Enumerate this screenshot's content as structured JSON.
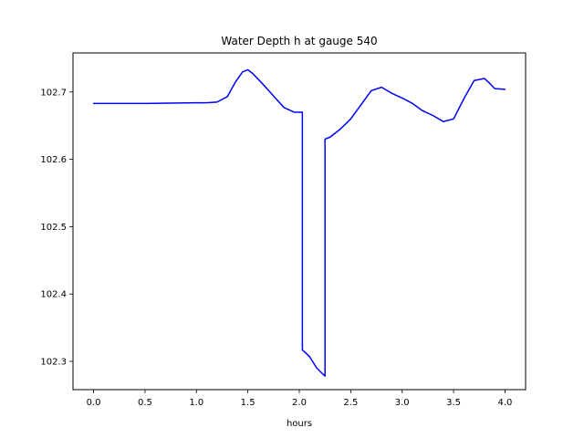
{
  "chart_data": {
    "type": "line",
    "title": "Water Depth h at gauge 540",
    "xlabel": "hours",
    "ylabel": "",
    "xlim": [
      -0.2,
      4.2
    ],
    "ylim": [
      102.258,
      102.758
    ],
    "xticks": [
      0.0,
      0.5,
      1.0,
      1.5,
      2.0,
      2.5,
      3.0,
      3.5,
      4.0
    ],
    "xtick_labels": [
      "0.0",
      "0.5",
      "1.0",
      "1.5",
      "2.0",
      "2.5",
      "3.0",
      "3.5",
      "4.0"
    ],
    "yticks": [
      102.3,
      102.4,
      102.5,
      102.6,
      102.7
    ],
    "ytick_labels": [
      "102.3",
      "102.4",
      "102.5",
      "102.6",
      "102.7"
    ],
    "grid": false,
    "series": [
      {
        "color": "#0000ff",
        "x": [
          0.0,
          0.5,
          1.0,
          1.1,
          1.2,
          1.3,
          1.38,
          1.45,
          1.5,
          1.55,
          1.65,
          1.75,
          1.85,
          1.95,
          2.03,
          2.03,
          2.1,
          2.17,
          2.25,
          2.25,
          2.3,
          2.4,
          2.5,
          2.6,
          2.7,
          2.8,
          2.9,
          3.0,
          3.1,
          3.2,
          3.3,
          3.4,
          3.5,
          3.6,
          3.7,
          3.8,
          3.85,
          3.9,
          4.0
        ],
        "y": [
          102.683,
          102.683,
          102.684,
          102.684,
          102.685,
          102.693,
          102.715,
          102.73,
          102.733,
          102.727,
          102.711,
          102.694,
          102.677,
          102.67,
          102.67,
          102.317,
          102.307,
          102.29,
          102.278,
          102.63,
          102.633,
          102.645,
          102.66,
          102.681,
          102.702,
          102.707,
          102.698,
          102.691,
          102.683,
          102.672,
          102.665,
          102.656,
          102.66,
          102.69,
          102.717,
          102.72,
          102.713,
          102.705,
          102.704
        ]
      }
    ]
  }
}
